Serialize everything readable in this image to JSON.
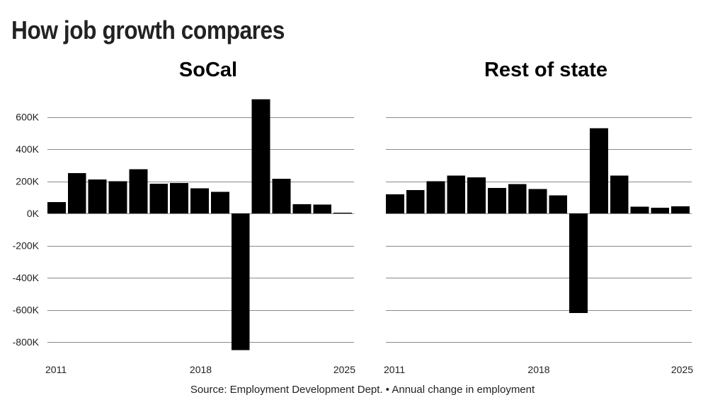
{
  "headline": "How job growth compares",
  "footer": {
    "source": "Source: Employment Development Dept. • Annual change in employment"
  },
  "colors": {
    "bar": "#000000",
    "grid": "#8a8a8a",
    "headline": "#222222"
  },
  "chart_data": [
    {
      "type": "bar",
      "title": "SoCal",
      "xlabel": "",
      "ylabel": "",
      "ylim": [
        -850000,
        700000
      ],
      "yticks": [
        600000,
        400000,
        200000,
        0,
        -200000,
        -400000,
        -600000,
        -800000
      ],
      "ytick_labels": [
        "600K",
        "400K",
        "200K",
        "0K",
        "-200K",
        "-400K",
        "-600K",
        "-800K"
      ],
      "categories": [
        "2011",
        "2012",
        "2013",
        "2014",
        "2015",
        "2016",
        "2017",
        "2018",
        "2019",
        "2020",
        "2021",
        "2022",
        "2023",
        "2024",
        "2025"
      ],
      "xtick_labels": [
        "2011",
        "2018",
        "2025"
      ],
      "values": [
        70000,
        250000,
        210000,
        200000,
        275000,
        185000,
        190000,
        155000,
        135000,
        -850000,
        710000,
        215000,
        58000,
        55000,
        5000
      ],
      "grid": true,
      "legend": "none"
    },
    {
      "type": "bar",
      "title": "Rest of state",
      "xlabel": "",
      "ylabel": "",
      "ylim": [
        -850000,
        700000
      ],
      "yticks": [
        600000,
        400000,
        200000,
        0,
        -200000,
        -400000,
        -600000,
        -800000
      ],
      "ytick_labels": [],
      "categories": [
        "2011",
        "2012",
        "2013",
        "2014",
        "2015",
        "2016",
        "2017",
        "2018",
        "2019",
        "2020",
        "2021",
        "2022",
        "2023",
        "2024",
        "2025"
      ],
      "xtick_labels": [
        "2011",
        "2018",
        "2025"
      ],
      "values": [
        118000,
        145000,
        200000,
        235000,
        225000,
        158000,
        182000,
        152000,
        112000,
        -620000,
        530000,
        235000,
        42000,
        35000,
        45000
      ],
      "grid": true,
      "legend": "none"
    }
  ]
}
